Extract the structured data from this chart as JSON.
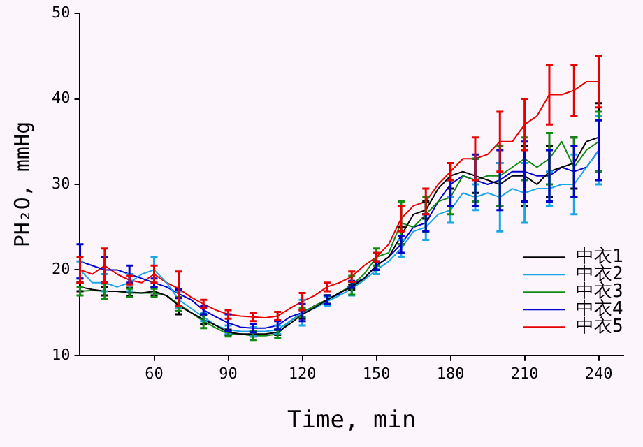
{
  "chart_data": {
    "type": "line",
    "xlabel": "Time, min",
    "ylabel": "PH₂O, mmHg",
    "x": [
      30,
      35,
      40,
      45,
      50,
      55,
      60,
      65,
      70,
      75,
      80,
      85,
      90,
      95,
      100,
      105,
      110,
      115,
      120,
      125,
      130,
      135,
      140,
      145,
      150,
      155,
      160,
      165,
      170,
      175,
      180,
      185,
      190,
      195,
      200,
      205,
      210,
      215,
      220,
      225,
      230,
      235,
      240
    ],
    "xlim": [
      30,
      250
    ],
    "xticks": [
      60,
      90,
      120,
      150,
      180,
      210,
      240
    ],
    "ylim": [
      10,
      50
    ],
    "yticks": [
      10,
      20,
      30,
      40,
      50
    ],
    "grid": false,
    "legend": "bottom right",
    "marker": "none",
    "line_style": "solid",
    "series": [
      {
        "name": "中衣1",
        "color": "#000000",
        "values": [
          18,
          17.7,
          17.5,
          17.5,
          17.4,
          17.3,
          17.5,
          17,
          15.8,
          15,
          14.2,
          13.5,
          12.7,
          12.5,
          12.5,
          12.5,
          12.7,
          13.7,
          14.8,
          15.6,
          16.5,
          17.3,
          18,
          19,
          20.5,
          21.5,
          24,
          26.5,
          27,
          29.5,
          31,
          31.5,
          31,
          30.5,
          30,
          31,
          31,
          30,
          31.5,
          32,
          32.5,
          35,
          35.5
        ],
        "errors": [
          0.5,
          null,
          0.5,
          null,
          0.5,
          null,
          0.5,
          null,
          1,
          null,
          0.5,
          null,
          0.3,
          null,
          0.3,
          null,
          0.3,
          null,
          0.5,
          null,
          0.5,
          null,
          0.3,
          null,
          0.5,
          null,
          1,
          null,
          1,
          null,
          1.5,
          null,
          2,
          null,
          2.5,
          null,
          3.5,
          null,
          3,
          null,
          3,
          null,
          4
        ]
      },
      {
        "name": "中衣2",
        "color": "#1aa6e6",
        "values": [
          20,
          18.5,
          18.5,
          18,
          18.5,
          19.5,
          20,
          18.5,
          16.5,
          15.5,
          14.5,
          13.5,
          13,
          12.8,
          12.8,
          12.8,
          13,
          14,
          15,
          15.5,
          16.3,
          17,
          17.8,
          18.8,
          20,
          21,
          22.5,
          24.5,
          25,
          26.5,
          27,
          29,
          28.5,
          29,
          28.5,
          29.5,
          29,
          29.5,
          29.5,
          30,
          30,
          32,
          34
        ],
        "errors": [
          1,
          null,
          1,
          null,
          1,
          null,
          1.5,
          null,
          1,
          null,
          0.5,
          null,
          0.5,
          null,
          0.5,
          null,
          0.5,
          null,
          1.5,
          null,
          0.5,
          null,
          0.8,
          null,
          0.5,
          null,
          1,
          null,
          1.5,
          null,
          1.5,
          null,
          1.5,
          null,
          4,
          null,
          3.5,
          null,
          2,
          null,
          3.5,
          null,
          4
        ]
      },
      {
        "name": "中衣3",
        "color": "#138a13",
        "values": [
          17.5,
          17.6,
          17.5,
          17.5,
          17.3,
          17.3,
          17.3,
          17,
          16,
          15,
          14,
          13.2,
          12.5,
          12.5,
          12.3,
          12.3,
          12.5,
          14,
          15,
          15.8,
          16.5,
          17.3,
          18.2,
          19.5,
          21.5,
          22,
          25.5,
          25,
          26.5,
          28,
          28.5,
          31,
          30.5,
          31,
          31,
          32,
          33,
          32,
          33,
          35,
          32,
          34,
          35
        ],
        "errors": [
          0.5,
          null,
          0.9,
          null,
          0.5,
          null,
          0.5,
          null,
          0.8,
          null,
          0.8,
          null,
          0.3,
          null,
          0.5,
          null,
          0.5,
          null,
          0.5,
          null,
          0.5,
          null,
          1.1,
          null,
          1,
          null,
          2.5,
          null,
          2,
          null,
          2,
          null,
          2.5,
          null,
          3.5,
          null,
          2.5,
          null,
          3,
          null,
          3.5,
          null,
          3.5
        ]
      },
      {
        "name": "中衣4",
        "color": "#0000cc",
        "values": [
          21,
          20.5,
          20,
          20,
          19.5,
          19,
          18.5,
          18,
          17.2,
          16.5,
          15.3,
          14.5,
          13.8,
          13.3,
          13.2,
          13.2,
          13.5,
          14.5,
          15,
          15.8,
          16.5,
          17.2,
          18.3,
          19,
          20.5,
          21.5,
          23,
          25,
          25.5,
          28,
          30,
          31,
          30.5,
          30,
          30.5,
          31.5,
          31.5,
          31,
          31,
          32,
          31.5,
          32,
          34
        ],
        "errors": [
          2,
          null,
          1.5,
          null,
          1,
          null,
          0.5,
          null,
          0.5,
          null,
          0.5,
          null,
          1,
          null,
          0.5,
          null,
          0.5,
          null,
          1,
          null,
          0.5,
          null,
          0.4,
          null,
          0.5,
          null,
          1,
          null,
          1,
          null,
          2.5,
          null,
          3,
          null,
          3.5,
          null,
          3.5,
          null,
          3,
          null,
          3,
          null,
          3.5
        ]
      },
      {
        "name": "中衣5",
        "color": "#e60000",
        "values": [
          20,
          19.5,
          20.5,
          19.5,
          18.8,
          18.5,
          19.5,
          18.5,
          17.8,
          16.8,
          16,
          15.3,
          14.8,
          14.6,
          14.5,
          14.4,
          14.6,
          15.5,
          16.3,
          17,
          18,
          18.5,
          19.2,
          20.5,
          21.5,
          23,
          26,
          27.5,
          28,
          30,
          31.5,
          33,
          33,
          33.5,
          35,
          35,
          37,
          38,
          40.5,
          40.5,
          41,
          42,
          42
        ],
        "errors": [
          1.5,
          null,
          2,
          null,
          0.5,
          null,
          1,
          null,
          2,
          null,
          0.5,
          null,
          0.5,
          null,
          0.5,
          null,
          0.5,
          null,
          1,
          null,
          0.5,
          null,
          0.6,
          null,
          0.5,
          null,
          1.5,
          null,
          1.5,
          null,
          1,
          null,
          2.5,
          null,
          3.5,
          null,
          3,
          null,
          3.5,
          null,
          3,
          null,
          3
        ]
      }
    ]
  }
}
